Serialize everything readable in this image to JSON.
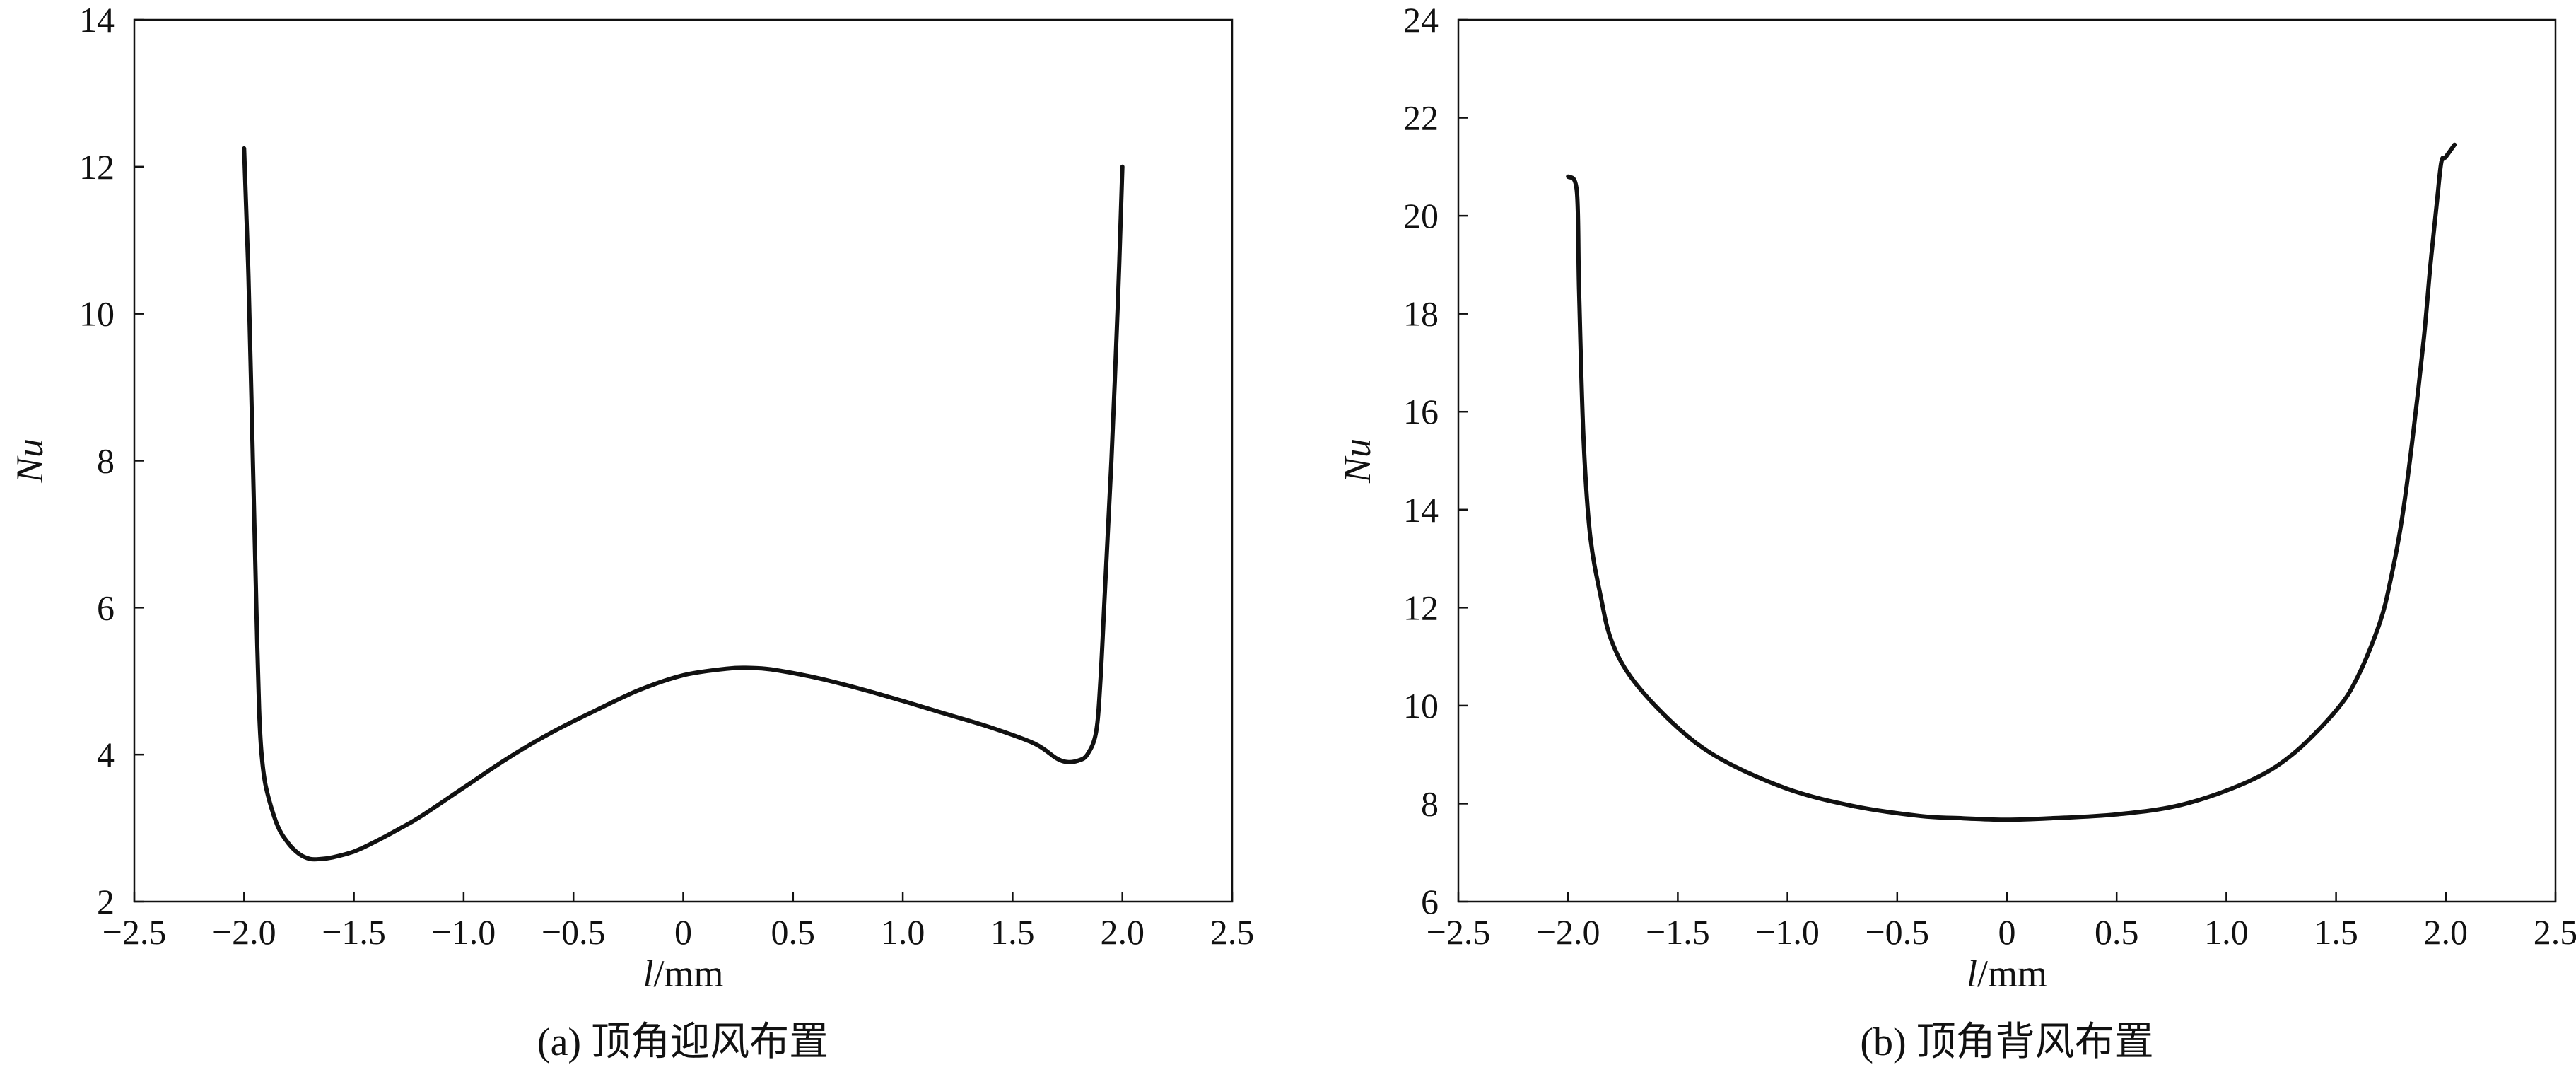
{
  "chart_data": [
    {
      "type": "line",
      "caption": "(a) 顶角迎风布置",
      "xlabel_var": "l",
      "xlabel_unit": "/mm",
      "ylabel": "Nu",
      "xlim": [
        -2.5,
        2.5
      ],
      "ylim": [
        2,
        14
      ],
      "xticks": [
        -2.5,
        -2.0,
        -1.5,
        -1.0,
        -0.5,
        0,
        0.5,
        1.0,
        1.5,
        2.0,
        2.5
      ],
      "xtick_labels": [
        "−2.5",
        "−2.0",
        "−1.5",
        "−1.0",
        "−0.5",
        "0",
        "0.5",
        "1.0",
        "1.5",
        "2.0",
        "2.5"
      ],
      "yticks": [
        2,
        4,
        6,
        8,
        10,
        12,
        14
      ],
      "ytick_labels": [
        "2",
        "4",
        "6",
        "8",
        "10",
        "12",
        "14"
      ],
      "grid": false,
      "series": [
        {
          "x": [
            -2.0,
            -1.98,
            -1.96,
            -1.94,
            -1.93,
            -1.92,
            -1.9,
            -1.85,
            -1.8,
            -1.75,
            -1.7,
            -1.65,
            -1.6,
            -1.5,
            -1.4,
            -1.3,
            -1.2,
            -1.0,
            -0.8,
            -0.6,
            -0.4,
            -0.2,
            0.0,
            0.2,
            0.3,
            0.4,
            0.6,
            0.8,
            1.0,
            1.2,
            1.4,
            1.6,
            1.7,
            1.75,
            1.8,
            1.84,
            1.88,
            1.9,
            1.92,
            1.95,
            1.98,
            2.0
          ],
          "y": [
            12.25,
            10.5,
            8.0,
            5.5,
            4.5,
            4.0,
            3.55,
            3.05,
            2.8,
            2.65,
            2.58,
            2.58,
            2.6,
            2.68,
            2.82,
            2.98,
            3.15,
            3.55,
            3.95,
            4.3,
            4.6,
            4.88,
            5.08,
            5.17,
            5.18,
            5.16,
            5.05,
            4.9,
            4.73,
            4.55,
            4.37,
            4.15,
            3.95,
            3.9,
            3.92,
            4.0,
            4.3,
            5.0,
            6.2,
            8.0,
            10.2,
            12.0
          ]
        }
      ]
    },
    {
      "type": "line",
      "caption": "(b) 顶角背风布置",
      "xlabel_var": "l",
      "xlabel_unit": "/mm",
      "ylabel": "Nu",
      "xlim": [
        -2.5,
        2.5
      ],
      "ylim": [
        6,
        24
      ],
      "xticks": [
        -2.5,
        -2.0,
        -1.5,
        -1.0,
        -0.5,
        0,
        0.5,
        1.0,
        1.5,
        2.0,
        2.5
      ],
      "xtick_labels": [
        "−2.5",
        "−2.0",
        "−1.5",
        "−1.0",
        "−0.5",
        "0",
        "0.5",
        "1.0",
        "1.5",
        "2.0",
        "2.5"
      ],
      "yticks": [
        6,
        8,
        10,
        12,
        14,
        16,
        18,
        20,
        22,
        24
      ],
      "ytick_labels": [
        "6",
        "8",
        "10",
        "12",
        "14",
        "16",
        "18",
        "20",
        "22",
        "24"
      ],
      "grid": false,
      "series": [
        {
          "x": [
            -2.0,
            -1.96,
            -1.95,
            -1.93,
            -1.9,
            -1.85,
            -1.8,
            -1.7,
            -1.5,
            -1.3,
            -1.0,
            -0.7,
            -0.4,
            -0.2,
            0.0,
            0.2,
            0.5,
            0.8,
            1.1,
            1.3,
            1.5,
            1.6,
            1.7,
            1.75,
            1.8,
            1.85,
            1.9,
            1.93,
            1.96,
            1.98,
            2.0,
            2.04
          ],
          "y": [
            20.8,
            20.5,
            18.5,
            15.5,
            13.5,
            12.2,
            11.3,
            10.5,
            9.55,
            8.9,
            8.3,
            7.95,
            7.75,
            7.7,
            7.67,
            7.7,
            7.78,
            7.98,
            8.45,
            9.0,
            9.9,
            10.6,
            11.7,
            12.6,
            13.8,
            15.5,
            17.5,
            19.0,
            20.3,
            21.1,
            21.2,
            21.45
          ]
        }
      ]
    }
  ]
}
